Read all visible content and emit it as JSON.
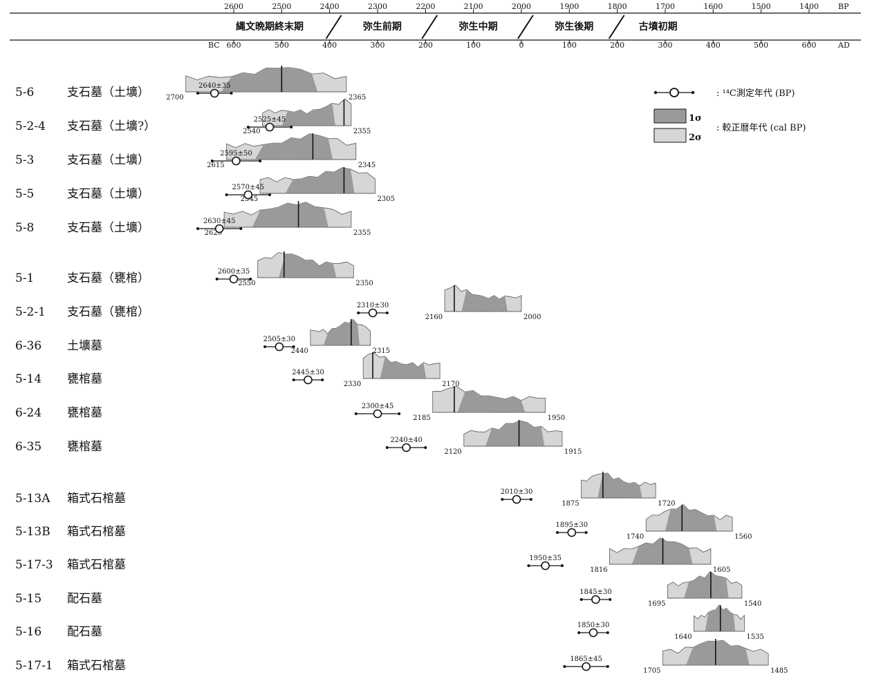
{
  "chart_data": {
    "type": "range-distribution",
    "scale_bp": {
      "ticks": [
        2600,
        2500,
        2400,
        2300,
        2200,
        2100,
        2000,
        1900,
        1800,
        1700,
        1600,
        1500,
        1400
      ],
      "unit": "BP"
    },
    "scale_ad": {
      "ticks": [
        "600",
        "500",
        "400",
        "300",
        "200",
        "100",
        "0",
        "100",
        "200",
        "300",
        "400",
        "500",
        "600"
      ],
      "bc_label": "BC",
      "unit": "AD"
    },
    "periods": [
      "縄文晩期終末期",
      "弥生前期",
      "弥生中期",
      "弥生後期",
      "古墳初期"
    ],
    "legend": {
      "c14_label": ": ¹⁴C測定年代 (BP)",
      "sigma1": "1σ",
      "sigma2": "2σ",
      "cal_label": ": 較正暦年代 (cal BP)"
    },
    "colors": {
      "sigma1": "#9a9a9a",
      "sigma2": "#d6d6d6",
      "line": "#111111"
    },
    "samples": [
      {
        "id": "5-6",
        "grave": "支石墓（土壙）",
        "c14": "2640±35",
        "c14_bp": 2640,
        "err": 35,
        "cal_lo": 2700,
        "cal_hi": 2365,
        "lo_label": "2700",
        "hi_label": "2365",
        "peak": 2500
      },
      {
        "id": "5-2-4",
        "grave": "支石墓（土壙?）",
        "c14": "2525±45",
        "c14_bp": 2525,
        "err": 45,
        "cal_lo": 2540,
        "cal_hi": 2355,
        "lo_label": "2540",
        "hi_label": "2355",
        "peak": 2370
      },
      {
        "id": "5-3",
        "grave": "支石墓（土壙）",
        "c14": "2595±50",
        "c14_bp": 2595,
        "err": 50,
        "cal_lo": 2615,
        "cal_hi": 2345,
        "lo_label": "2615",
        "hi_label": "2345",
        "peak": 2435
      },
      {
        "id": "5-5",
        "grave": "支石墓（土壙）",
        "c14": "2570±45",
        "c14_bp": 2570,
        "err": 45,
        "cal_lo": 2545,
        "cal_hi": 2305,
        "lo_label": "2545",
        "hi_label": "2305",
        "peak": 2370
      },
      {
        "id": "5-8",
        "grave": "支石墓（土壙）",
        "c14": "2630±45",
        "c14_bp": 2630,
        "err": 45,
        "cal_lo": 2620,
        "cal_hi": 2355,
        "lo_label": "2620",
        "hi_label": "2355",
        "peak": 2465
      },
      {
        "id": "5-1",
        "grave": "支石墓（甕棺）",
        "c14": "2600±35",
        "c14_bp": 2600,
        "err": 35,
        "cal_lo": 2550,
        "cal_hi": 2350,
        "lo_label": "2550",
        "hi_label": "2350",
        "peak": 2495
      },
      {
        "id": "5-2-1",
        "grave": "支石墓（甕棺）",
        "c14": "2310±30",
        "c14_bp": 2310,
        "err": 30,
        "cal_lo": 2160,
        "cal_hi": 2000,
        "lo_label": "2160",
        "hi_label": "2000",
        "peak": 2140
      },
      {
        "id": "6-36",
        "grave": "土壙墓",
        "c14": "2505±30",
        "c14_bp": 2505,
        "err": 30,
        "cal_lo": 2440,
        "cal_hi": 2315,
        "lo_label": "2440",
        "hi_label": "2315",
        "peak": 2355
      },
      {
        "id": "5-14",
        "grave": "甕棺墓",
        "c14": "2445±30",
        "c14_bp": 2445,
        "err": 30,
        "cal_lo": 2330,
        "cal_hi": 2170,
        "lo_label": "2330",
        "hi_label": "2170",
        "peak": 2310
      },
      {
        "id": "6-24",
        "grave": "甕棺墓",
        "c14": "2300±45",
        "c14_bp": 2300,
        "err": 45,
        "cal_lo": 2185,
        "cal_hi": 1950,
        "lo_label": "2185",
        "hi_label": "1950",
        "peak": 2140
      },
      {
        "id": "6-35",
        "grave": "甕棺墓",
        "c14": "2240±40",
        "c14_bp": 2240,
        "err": 40,
        "cal_lo": 2120,
        "cal_hi": 1915,
        "lo_label": "2120",
        "hi_label": "1915",
        "peak": 2005
      },
      {
        "id": "5-13A",
        "grave": "箱式石棺墓",
        "c14": "2010±30",
        "c14_bp": 2010,
        "err": 30,
        "cal_lo": 1875,
        "cal_hi": 1720,
        "lo_label": "1875",
        "hi_label": "1720",
        "peak": 1830
      },
      {
        "id": "5-13B",
        "grave": "箱式石棺墓",
        "c14": "1895±30",
        "c14_bp": 1895,
        "err": 30,
        "cal_lo": 1740,
        "cal_hi": 1560,
        "lo_label": "1740",
        "hi_label": "1560",
        "peak": 1665
      },
      {
        "id": "5-17-3",
        "grave": "箱式石棺墓",
        "c14": "1950±35",
        "c14_bp": 1950,
        "err": 35,
        "cal_lo": 1816,
        "cal_hi": 1605,
        "lo_label": "1816",
        "hi_label": "1605",
        "peak": 1705
      },
      {
        "id": "5-15",
        "grave": "配石墓",
        "c14": "1845±30",
        "c14_bp": 1845,
        "err": 30,
        "cal_lo": 1695,
        "cal_hi": 1540,
        "lo_label": "1695",
        "hi_label": "1540",
        "peak": 1605
      },
      {
        "id": "5-16",
        "grave": "配石墓",
        "c14": "1850±30",
        "c14_bp": 1850,
        "err": 30,
        "cal_lo": 1640,
        "cal_hi": 1535,
        "lo_label": "1640",
        "hi_label": "1535",
        "peak": 1585
      },
      {
        "id": "5-17-1",
        "grave": "箱式石棺墓",
        "c14": "1865±45",
        "c14_bp": 1865,
        "err": 45,
        "cal_lo": 1705,
        "cal_hi": 1485,
        "lo_label": "1705",
        "hi_label": "1485",
        "peak": 1595
      }
    ]
  }
}
